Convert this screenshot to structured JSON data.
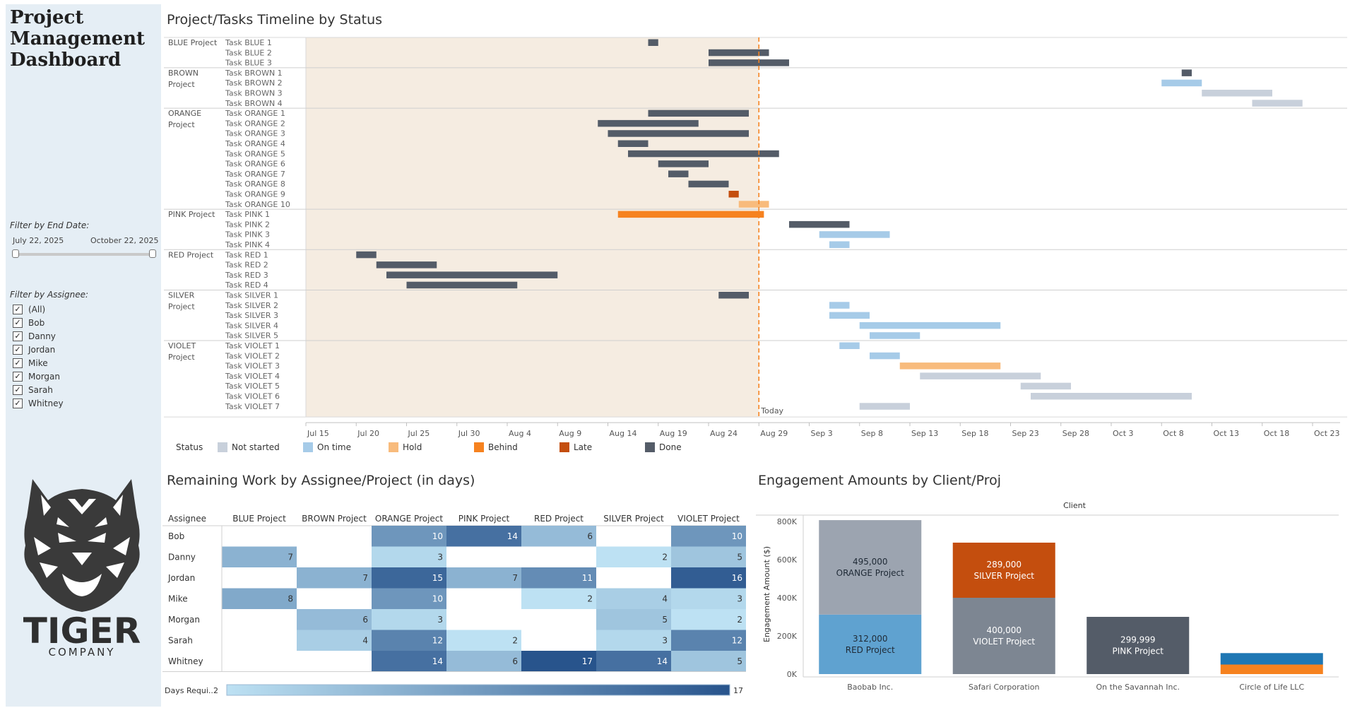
{
  "app": {
    "title": "Project Management Dashboard"
  },
  "filters": {
    "end_date_label": "Filter by End Date:",
    "end_date_start": "July 22, 2025",
    "end_date_end": "October 22, 2025",
    "assignee_label": "Filter by Assignee:",
    "assignees": [
      {
        "label": "(All)",
        "checked": true
      },
      {
        "label": "Bob",
        "checked": true
      },
      {
        "label": "Danny",
        "checked": true
      },
      {
        "label": "Jordan",
        "checked": true
      },
      {
        "label": "Mike",
        "checked": true
      },
      {
        "label": "Morgan",
        "checked": true
      },
      {
        "label": "Sarah",
        "checked": true
      },
      {
        "label": "Whitney",
        "checked": true
      }
    ]
  },
  "logo": {
    "wordmark": "TIGER",
    "sub": "COMPANY"
  },
  "timeline": {
    "title": "Project/Tasks Timeline by Status",
    "today_label": "Today",
    "today_day": 45,
    "axis_ticks": [
      {
        "label": "Jul 15",
        "day": 0
      },
      {
        "label": "Jul 20",
        "day": 5
      },
      {
        "label": "Jul 25",
        "day": 10
      },
      {
        "label": "Jul 30",
        "day": 15
      },
      {
        "label": "Aug 4",
        "day": 20
      },
      {
        "label": "Aug 9",
        "day": 25
      },
      {
        "label": "Aug 14",
        "day": 30
      },
      {
        "label": "Aug 19",
        "day": 35
      },
      {
        "label": "Aug 24",
        "day": 40
      },
      {
        "label": "Aug 29",
        "day": 45
      },
      {
        "label": "Sep 3",
        "day": 50
      },
      {
        "label": "Sep 8",
        "day": 55
      },
      {
        "label": "Sep 13",
        "day": 60
      },
      {
        "label": "Sep 18",
        "day": 65
      },
      {
        "label": "Sep 23",
        "day": 70
      },
      {
        "label": "Sep 28",
        "day": 75
      },
      {
        "label": "Oct 3",
        "day": 80
      },
      {
        "label": "Oct 8",
        "day": 85
      },
      {
        "label": "Oct 13",
        "day": 90
      },
      {
        "label": "Oct 18",
        "day": 95
      },
      {
        "label": "Oct 23",
        "day": 100
      }
    ],
    "status_colors": {
      "Not started": "#c8d0db",
      "On time": "#a6cbe8",
      "Hold": "#f8bb7c",
      "Behind": "#f6821f",
      "Late": "#c44e0e",
      "Done": "#545c68"
    },
    "legend_title": "Status",
    "legend": [
      "Not started",
      "On time",
      "Hold",
      "Behind",
      "Late",
      "Done"
    ],
    "projects": [
      {
        "name": [
          "BLUE Project"
        ],
        "tasks": [
          {
            "name": "Task BLUE 1",
            "start": 34,
            "end": 35,
            "status": "Done"
          },
          {
            "name": "Task BLUE 2",
            "start": 40,
            "end": 46,
            "status": "Done"
          },
          {
            "name": "Task BLUE 3",
            "start": 40,
            "end": 48,
            "status": "Done"
          }
        ]
      },
      {
        "name": [
          "BROWN",
          "Project"
        ],
        "tasks": [
          {
            "name": "Task BROWN 1",
            "start": 87,
            "end": 88,
            "status": "Done"
          },
          {
            "name": "Task BROWN 2",
            "start": 85,
            "end": 89,
            "status": "On time"
          },
          {
            "name": "Task BROWN 3",
            "start": 89,
            "end": 96,
            "status": "Not started"
          },
          {
            "name": "Task BROWN 4",
            "start": 94,
            "end": 99,
            "status": "Not started"
          }
        ]
      },
      {
        "name": [
          "ORANGE",
          "Project"
        ],
        "tasks": [
          {
            "name": "Task ORANGE 1",
            "start": 34,
            "end": 44,
            "status": "Done"
          },
          {
            "name": "Task ORANGE 2",
            "start": 29,
            "end": 39,
            "status": "Done"
          },
          {
            "name": "Task ORANGE 3",
            "start": 30,
            "end": 44,
            "status": "Done"
          },
          {
            "name": "Task ORANGE 4",
            "start": 31,
            "end": 34,
            "status": "Done"
          },
          {
            "name": "Task ORANGE 5",
            "start": 32,
            "end": 47,
            "status": "Done"
          },
          {
            "name": "Task ORANGE 6",
            "start": 35,
            "end": 40,
            "status": "Done"
          },
          {
            "name": "Task ORANGE 7",
            "start": 36,
            "end": 38,
            "status": "Done"
          },
          {
            "name": "Task ORANGE 8",
            "start": 38,
            "end": 42,
            "status": "Done"
          },
          {
            "name": "Task ORANGE 9",
            "start": 42,
            "end": 43,
            "status": "Late"
          },
          {
            "name": "Task ORANGE 10",
            "start": 43,
            "end": 46,
            "status": "Hold"
          }
        ]
      },
      {
        "name": [
          "PINK Project"
        ],
        "tasks": [
          {
            "name": "Task PINK 1",
            "start": 31,
            "end": 45.5,
            "status": "Behind"
          },
          {
            "name": "Task PINK 2",
            "start": 48,
            "end": 54,
            "status": "Done"
          },
          {
            "name": "Task PINK 3",
            "start": 51,
            "end": 58,
            "status": "On time"
          },
          {
            "name": "Task PINK 4",
            "start": 52,
            "end": 54,
            "status": "On time"
          }
        ]
      },
      {
        "name": [
          "RED Project"
        ],
        "tasks": [
          {
            "name": "Task RED 1",
            "start": 5,
            "end": 7,
            "status": "Done"
          },
          {
            "name": "Task RED 2",
            "start": 7,
            "end": 13,
            "status": "Done"
          },
          {
            "name": "Task RED 3",
            "start": 8,
            "end": 25,
            "status": "Done"
          },
          {
            "name": "Task RED 4",
            "start": 10,
            "end": 21,
            "status": "Done"
          }
        ]
      },
      {
        "name": [
          "SILVER",
          "Project"
        ],
        "tasks": [
          {
            "name": "Task SILVER 1",
            "start": 41,
            "end": 44,
            "status": "Done"
          },
          {
            "name": "Task SILVER 2",
            "start": 52,
            "end": 54,
            "status": "On time"
          },
          {
            "name": "Task SILVER 3",
            "start": 52,
            "end": 56,
            "status": "On time"
          },
          {
            "name": "Task SILVER 4",
            "start": 55,
            "end": 69,
            "status": "On time"
          },
          {
            "name": "Task SILVER 5",
            "start": 56,
            "end": 61,
            "status": "On time"
          }
        ]
      },
      {
        "name": [
          "VIOLET",
          "Project"
        ],
        "tasks": [
          {
            "name": "Task VIOLET 1",
            "start": 53,
            "end": 55,
            "status": "On time"
          },
          {
            "name": "Task VIOLET 2",
            "start": 56,
            "end": 59,
            "status": "On time"
          },
          {
            "name": "Task VIOLET 3",
            "start": 59,
            "end": 69,
            "status": "Hold"
          },
          {
            "name": "Task VIOLET 4",
            "start": 61,
            "end": 73,
            "status": "Not started"
          },
          {
            "name": "Task VIOLET 5",
            "start": 71,
            "end": 76,
            "status": "Not started"
          },
          {
            "name": "Task VIOLET 6",
            "start": 72,
            "end": 88,
            "status": "Not started"
          },
          {
            "name": "Task VIOLET 7",
            "start": 55,
            "end": 60,
            "status": "Not started"
          }
        ]
      }
    ]
  },
  "heatmap": {
    "title": "Remaining Work by Assignee/Project (in days)",
    "row_header": "Assignee",
    "columns": [
      "BLUE Project",
      "BROWN Project",
      "ORANGE Project",
      "PINK Project",
      "RED Project",
      "SILVER Project",
      "VIOLET Project"
    ],
    "rows": [
      {
        "name": "Bob",
        "values": [
          null,
          null,
          10,
          14,
          6,
          null,
          10
        ]
      },
      {
        "name": "Danny",
        "values": [
          7,
          null,
          3,
          null,
          null,
          2,
          5
        ]
      },
      {
        "name": "Jordan",
        "values": [
          null,
          7,
          15,
          7,
          11,
          null,
          16
        ]
      },
      {
        "name": "Mike",
        "values": [
          8,
          null,
          10,
          null,
          2,
          4,
          3
        ]
      },
      {
        "name": "Morgan",
        "values": [
          null,
          6,
          3,
          null,
          null,
          5,
          2
        ]
      },
      {
        "name": "Sarah",
        "values": [
          null,
          4,
          12,
          2,
          null,
          3,
          12
        ]
      },
      {
        "name": "Whitney",
        "values": [
          null,
          null,
          14,
          6,
          17,
          14,
          5
        ]
      }
    ],
    "scale_label": "Days Requi..",
    "scale_min": 2,
    "scale_max": 17
  },
  "chart_data": {
    "type": "bar",
    "title": "Engagement Amounts by Client/Proj",
    "subtitle": "Client",
    "ylabel": "Engagement Amount ($)",
    "ylim": [
      0,
      800000
    ],
    "yticks": [
      {
        "label": "0K",
        "value": 0
      },
      {
        "label": "200K",
        "value": 200000
      },
      {
        "label": "400K",
        "value": 400000
      },
      {
        "label": "600K",
        "value": 600000
      },
      {
        "label": "800K",
        "value": 800000
      }
    ],
    "categories": [
      "Baobab Inc.",
      "Safari Corporation",
      "On the Savannah Inc.",
      "Circle of Life LLC"
    ],
    "stacks": [
      {
        "category": "Baobab Inc.",
        "segments": [
          {
            "project": "RED Project",
            "value": 312000,
            "label": "312,000",
            "color": "#5fa2d0",
            "text_color": "#1f2a36"
          },
          {
            "project": "ORANGE Project",
            "value": 495000,
            "label": "495,000",
            "color": "#9ca4b0",
            "text_color": "#1f2a36"
          }
        ]
      },
      {
        "category": "Safari Corporation",
        "segments": [
          {
            "project": "VIOLET Project",
            "value": 400000,
            "label": "400,000",
            "color": "#7d8692",
            "text_color": "#ffffff"
          },
          {
            "project": "SILVER Project",
            "value": 289000,
            "label": "289,000",
            "color": "#c44e0e",
            "text_color": "#ffffff"
          }
        ]
      },
      {
        "category": "On the Savannah Inc.",
        "segments": [
          {
            "project": "PINK Project",
            "value": 299999,
            "label": "299,999",
            "color": "#545c68",
            "text_color": "#ffffff"
          }
        ]
      },
      {
        "category": "Circle of Life LLC",
        "segments": [
          {
            "project": "",
            "value": 50000,
            "label": "",
            "color": "#f6821f",
            "text_color": "#ffffff"
          },
          {
            "project": "",
            "value": 60000,
            "label": "",
            "color": "#1f77b4",
            "text_color": "#ffffff"
          }
        ]
      }
    ]
  }
}
